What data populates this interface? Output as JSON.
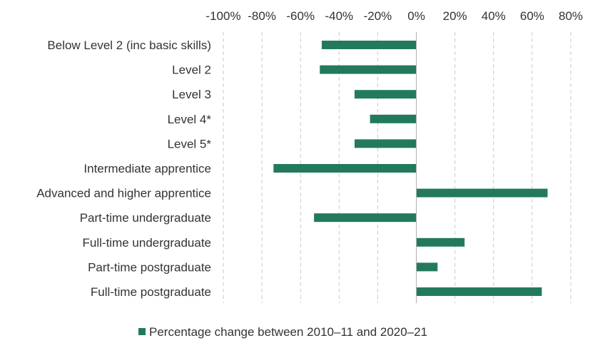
{
  "chart_data": {
    "type": "bar",
    "orientation": "horizontal",
    "categories": [
      "Below Level 2 (inc basic skills)",
      "Level 2",
      "Level 3",
      "Level 4*",
      "Level 5*",
      "Intermediate apprentice",
      "Advanced and higher apprentice",
      "Part-time undergraduate",
      "Full-time undergraduate",
      "Part-time postgraduate",
      "Full-time postgraduate"
    ],
    "series": [
      {
        "name": "Percentage change between 2010–11 and 2020–21",
        "color": "#237a5b",
        "values": [
          -49,
          -50,
          -32,
          -24,
          -32,
          -74,
          68,
          -53,
          25,
          11,
          65
        ]
      }
    ],
    "xlim": [
      -100,
      80
    ],
    "xticks": [
      -100,
      -80,
      -60,
      -40,
      -20,
      0,
      20,
      40,
      60,
      80
    ],
    "tick_format": "percent",
    "axis_position": "top",
    "grid": "vertical-dashed",
    "legend_position": "bottom"
  }
}
